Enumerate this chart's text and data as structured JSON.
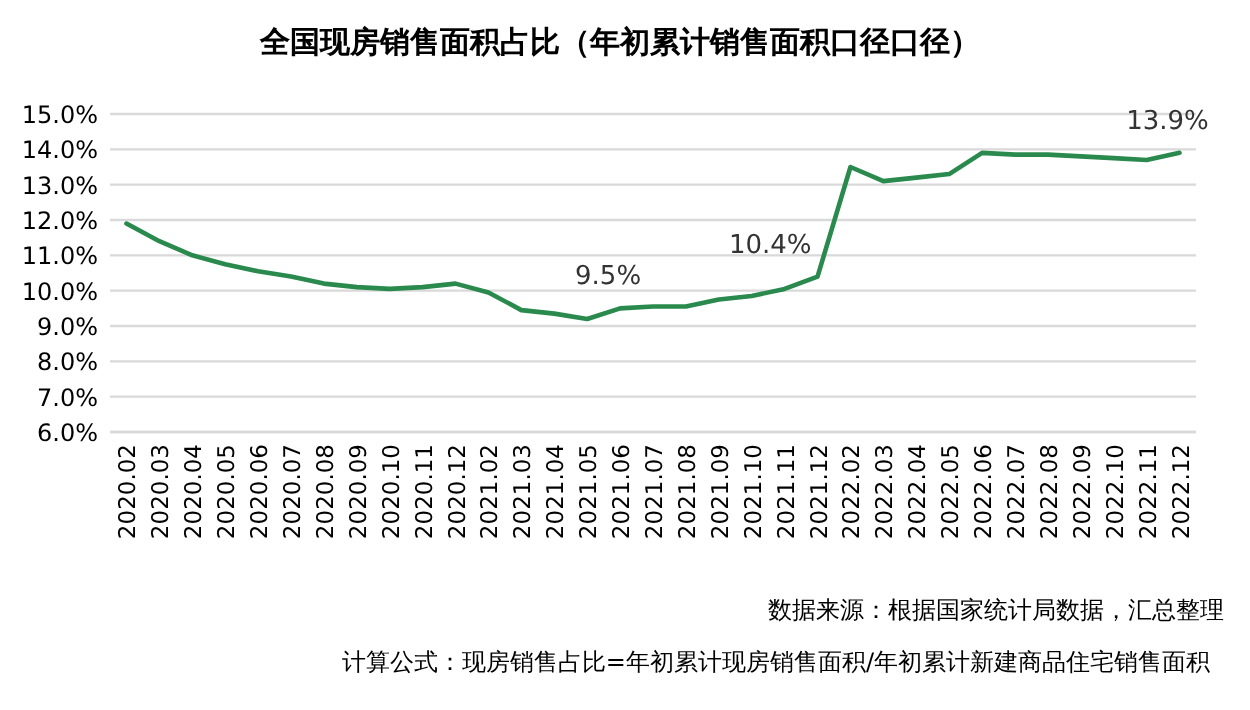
{
  "chart_data": {
    "type": "line",
    "title": "全国现房销售面积占比（年初累计销售面积口径口径）",
    "categories": [
      "2020.02",
      "2020.03",
      "2020.04",
      "2020.05",
      "2020.06",
      "2020.07",
      "2020.08",
      "2020.09",
      "2020.10",
      "2020.11",
      "2020.12",
      "2021.02",
      "2021.03",
      "2021.04",
      "2021.05",
      "2021.06",
      "2021.07",
      "2021.08",
      "2021.09",
      "2021.10",
      "2021.11",
      "2021.12",
      "2022.02",
      "2022.03",
      "2022.04",
      "2022.05",
      "2022.06",
      "2022.07",
      "2022.08",
      "2022.09",
      "2022.10",
      "2022.11",
      "2022.12"
    ],
    "series": [
      {
        "color": "#2a8a4e",
        "values": [
          11.9,
          11.4,
          11.0,
          10.75,
          10.55,
          10.4,
          10.2,
          10.1,
          10.05,
          10.1,
          10.2,
          9.95,
          9.45,
          9.35,
          9.2,
          9.5,
          9.55,
          9.55,
          9.75,
          9.85,
          10.05,
          10.4,
          13.5,
          13.1,
          13.2,
          13.3,
          13.9,
          13.85,
          13.85,
          13.8,
          13.75,
          13.7,
          13.9
        ],
        "value_labels": [
          null,
          null,
          null,
          null,
          null,
          null,
          null,
          null,
          null,
          null,
          null,
          null,
          null,
          null,
          null,
          "9.5%",
          null,
          null,
          null,
          null,
          null,
          "10.4%",
          null,
          null,
          null,
          null,
          null,
          null,
          null,
          null,
          null,
          null,
          "13.9%"
        ]
      }
    ],
    "ylim": [
      6,
      15
    ],
    "yticks": [
      {
        "value": 6,
        "label": "6.0%"
      },
      {
        "value": 7,
        "label": "7.0%"
      },
      {
        "value": 8,
        "label": "8.0%"
      },
      {
        "value": 9,
        "label": "9.0%"
      },
      {
        "value": 10,
        "label": "10.0%"
      },
      {
        "value": 11,
        "label": "11.0%"
      },
      {
        "value": 12,
        "label": "12.0%"
      },
      {
        "value": 13,
        "label": "13.0%"
      },
      {
        "value": 14,
        "label": "14.0%"
      },
      {
        "value": 15,
        "label": "15.0%"
      }
    ],
    "grid": "y",
    "marker": "none",
    "line_style": "solid",
    "annotations": [
      "数据来源：根据国家统计局数据，汇总整理",
      "计算公式：现房销售占比=年初累计现房销售面积/年初累计新建商品住宅销售面积"
    ]
  }
}
